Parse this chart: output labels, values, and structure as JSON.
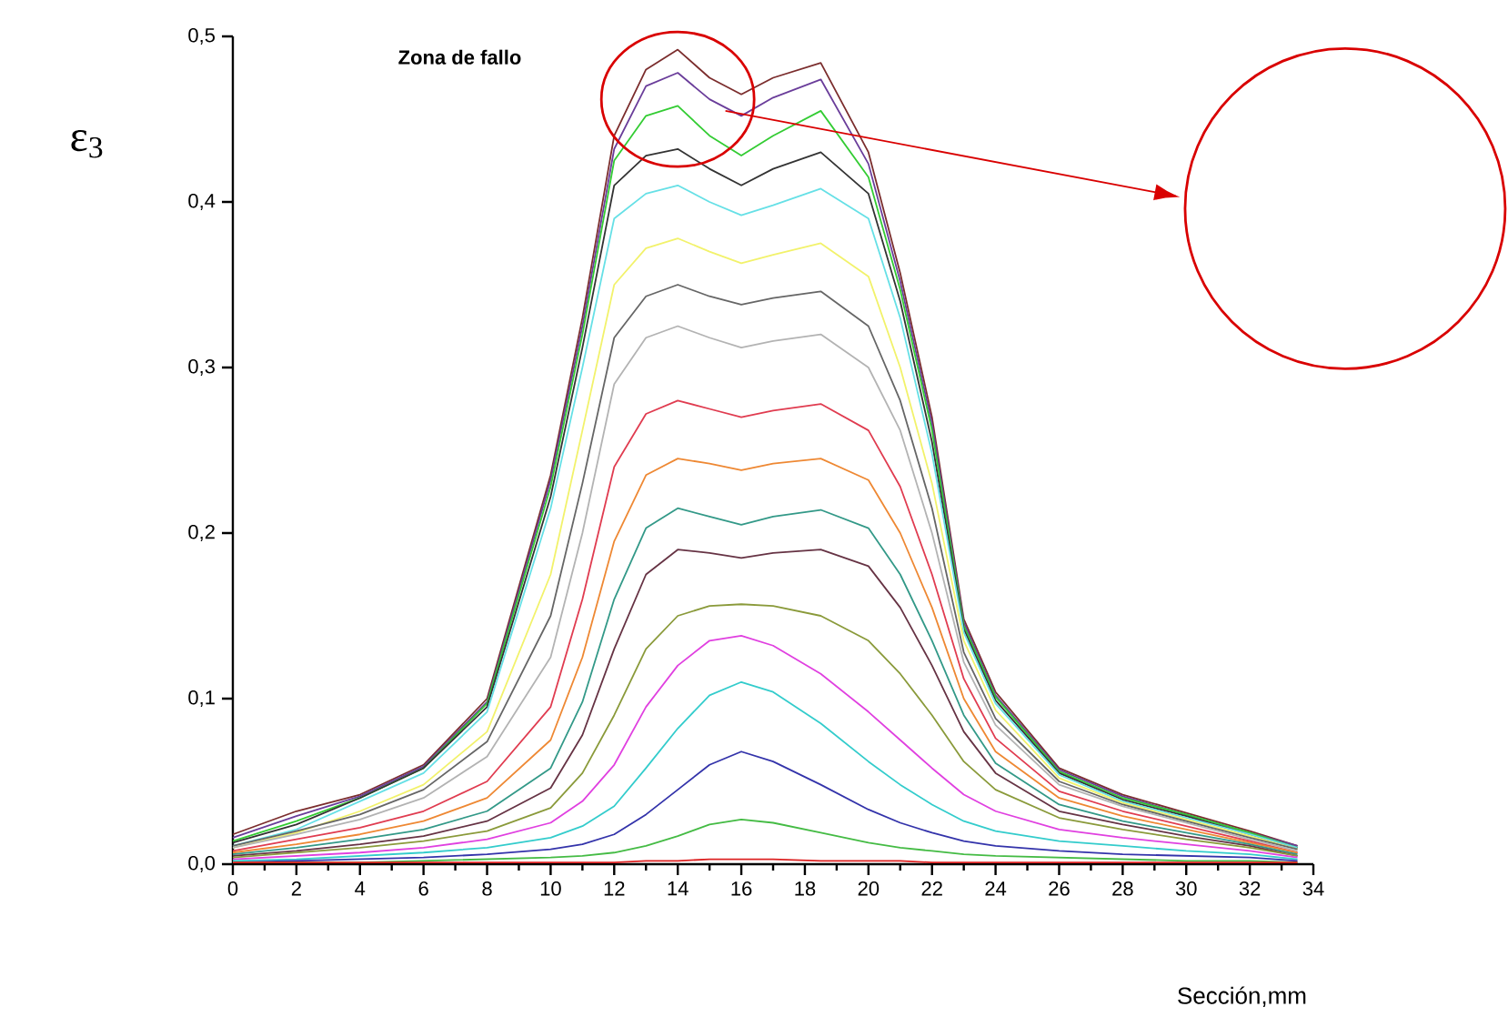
{
  "chart_data": {
    "type": "line",
    "xlabel": "Sección,mm",
    "ylabel": "ε$_{3}$",
    "annotations": [
      "Zona de fallo"
    ],
    "x": [
      0,
      2,
      4,
      6,
      8,
      10,
      11,
      12,
      13,
      14,
      15,
      16,
      17,
      18.5,
      20,
      21,
      22,
      23,
      24,
      26,
      28,
      30,
      32,
      33.5
    ],
    "xlim": [
      0,
      34
    ],
    "xticks": [
      0,
      2,
      4,
      6,
      8,
      10,
      12,
      14,
      16,
      18,
      20,
      22,
      24,
      26,
      28,
      30,
      32,
      34
    ],
    "ylim": [
      0,
      0.5
    ],
    "yticks": [
      {
        "value": 0,
        "label": "0,0"
      },
      {
        "value": 0.1,
        "label": "0,1"
      },
      {
        "value": 0.2,
        "label": "0,2"
      },
      {
        "value": 0.3,
        "label": "0,3"
      },
      {
        "value": 0.4,
        "label": "0,4"
      },
      {
        "value": 0.5,
        "label": "0,5"
      }
    ],
    "series": [
      {
        "color": "#7b2d2d",
        "values": [
          0.018,
          0.032,
          0.042,
          0.06,
          0.1,
          0.235,
          0.33,
          0.44,
          0.48,
          0.492,
          0.475,
          0.465,
          0.475,
          0.484,
          0.43,
          0.357,
          0.27,
          0.148,
          0.104,
          0.058,
          0.042,
          0.031,
          0.02,
          0.011
        ]
      },
      {
        "color": "#6a3d9a",
        "values": [
          0.016,
          0.029,
          0.041,
          0.059,
          0.098,
          0.232,
          0.325,
          0.432,
          0.47,
          0.478,
          0.462,
          0.452,
          0.463,
          0.474,
          0.423,
          0.352,
          0.266,
          0.146,
          0.102,
          0.057,
          0.041,
          0.03,
          0.019,
          0.011
        ]
      },
      {
        "color": "#33cc33",
        "values": [
          0.014,
          0.026,
          0.04,
          0.058,
          0.097,
          0.228,
          0.32,
          0.425,
          0.452,
          0.458,
          0.44,
          0.428,
          0.44,
          0.455,
          0.415,
          0.347,
          0.262,
          0.144,
          0.101,
          0.056,
          0.04,
          0.03,
          0.019,
          0.01
        ]
      },
      {
        "color": "#333333",
        "values": [
          0.013,
          0.024,
          0.04,
          0.058,
          0.095,
          0.222,
          0.312,
          0.41,
          0.428,
          0.432,
          0.42,
          0.41,
          0.42,
          0.43,
          0.405,
          0.34,
          0.255,
          0.142,
          0.099,
          0.055,
          0.039,
          0.029,
          0.018,
          0.01
        ]
      },
      {
        "color": "#66e0e6",
        "values": [
          0.011,
          0.021,
          0.038,
          0.055,
          0.092,
          0.215,
          0.3,
          0.39,
          0.405,
          0.41,
          0.4,
          0.392,
          0.398,
          0.408,
          0.39,
          0.33,
          0.248,
          0.14,
          0.097,
          0.054,
          0.038,
          0.028,
          0.018,
          0.01
        ]
      },
      {
        "color": "#f2f26b",
        "values": [
          0.01,
          0.019,
          0.032,
          0.048,
          0.08,
          0.175,
          0.262,
          0.35,
          0.372,
          0.378,
          0.37,
          0.363,
          0.368,
          0.375,
          0.355,
          0.3,
          0.23,
          0.135,
          0.093,
          0.052,
          0.037,
          0.027,
          0.017,
          0.009
        ]
      },
      {
        "color": "#666666",
        "values": [
          0.011,
          0.02,
          0.03,
          0.045,
          0.074,
          0.15,
          0.23,
          0.318,
          0.343,
          0.35,
          0.343,
          0.338,
          0.342,
          0.346,
          0.325,
          0.28,
          0.215,
          0.128,
          0.088,
          0.05,
          0.036,
          0.026,
          0.016,
          0.009
        ]
      },
      {
        "color": "#b3b3b3",
        "values": [
          0.01,
          0.018,
          0.027,
          0.04,
          0.065,
          0.125,
          0.2,
          0.29,
          0.318,
          0.325,
          0.318,
          0.312,
          0.316,
          0.32,
          0.3,
          0.262,
          0.2,
          0.122,
          0.084,
          0.048,
          0.035,
          0.025,
          0.015,
          0.008
        ]
      },
      {
        "color": "#e03c50",
        "values": [
          0.008,
          0.015,
          0.022,
          0.032,
          0.05,
          0.095,
          0.16,
          0.24,
          0.272,
          0.28,
          0.275,
          0.27,
          0.274,
          0.278,
          0.262,
          0.228,
          0.175,
          0.112,
          0.076,
          0.044,
          0.032,
          0.023,
          0.014,
          0.007
        ]
      },
      {
        "color": "#ee8833",
        "values": [
          0.007,
          0.012,
          0.018,
          0.026,
          0.04,
          0.075,
          0.125,
          0.195,
          0.235,
          0.245,
          0.242,
          0.238,
          0.242,
          0.245,
          0.232,
          0.2,
          0.155,
          0.1,
          0.068,
          0.04,
          0.029,
          0.021,
          0.013,
          0.007
        ]
      },
      {
        "color": "#339988",
        "values": [
          0.006,
          0.01,
          0.015,
          0.021,
          0.032,
          0.058,
          0.098,
          0.16,
          0.203,
          0.215,
          0.21,
          0.205,
          0.21,
          0.214,
          0.203,
          0.175,
          0.135,
          0.09,
          0.061,
          0.036,
          0.026,
          0.019,
          0.012,
          0.006
        ]
      },
      {
        "color": "#663344",
        "values": [
          0.005,
          0.008,
          0.012,
          0.017,
          0.026,
          0.046,
          0.078,
          0.13,
          0.175,
          0.19,
          0.188,
          0.185,
          0.188,
          0.19,
          0.18,
          0.155,
          0.12,
          0.08,
          0.055,
          0.032,
          0.024,
          0.017,
          0.011,
          0.005
        ]
      },
      {
        "color": "#8a9a3a",
        "values": [
          0.004,
          0.007,
          0.01,
          0.014,
          0.02,
          0.034,
          0.055,
          0.09,
          0.13,
          0.15,
          0.156,
          0.157,
          0.156,
          0.15,
          0.135,
          0.115,
          0.09,
          0.062,
          0.045,
          0.028,
          0.021,
          0.015,
          0.01,
          0.005
        ]
      },
      {
        "color": "#e040e0",
        "values": [
          0.003,
          0.005,
          0.007,
          0.01,
          0.015,
          0.025,
          0.038,
          0.06,
          0.095,
          0.12,
          0.135,
          0.138,
          0.132,
          0.115,
          0.092,
          0.075,
          0.058,
          0.042,
          0.032,
          0.021,
          0.016,
          0.012,
          0.008,
          0.004
        ]
      },
      {
        "color": "#33cccc",
        "values": [
          0.002,
          0.003,
          0.005,
          0.007,
          0.01,
          0.016,
          0.023,
          0.035,
          0.058,
          0.082,
          0.102,
          0.11,
          0.104,
          0.085,
          0.062,
          0.048,
          0.036,
          0.026,
          0.02,
          0.014,
          0.011,
          0.008,
          0.006,
          0.003
        ]
      },
      {
        "color": "#3333aa",
        "values": [
          0.001,
          0.002,
          0.003,
          0.004,
          0.006,
          0.009,
          0.012,
          0.018,
          0.03,
          0.045,
          0.06,
          0.068,
          0.062,
          0.048,
          0.033,
          0.025,
          0.019,
          0.014,
          0.011,
          0.008,
          0.006,
          0.005,
          0.004,
          0.002
        ]
      },
      {
        "color": "#44bb44",
        "values": [
          0.001,
          0.001,
          0.001,
          0.002,
          0.003,
          0.004,
          0.005,
          0.007,
          0.011,
          0.017,
          0.024,
          0.027,
          0.025,
          0.019,
          0.013,
          0.01,
          0.008,
          0.006,
          0.005,
          0.004,
          0.003,
          0.002,
          0.002,
          0.001
        ]
      },
      {
        "color": "#dd2222",
        "values": [
          0.001,
          0.001,
          0.001,
          0.001,
          0.001,
          0.001,
          0.001,
          0.001,
          0.002,
          0.002,
          0.003,
          0.003,
          0.003,
          0.002,
          0.002,
          0.002,
          0.001,
          0.001,
          0.001,
          0.001,
          0.001,
          0.001,
          0.001,
          0.001
        ]
      }
    ]
  }
}
